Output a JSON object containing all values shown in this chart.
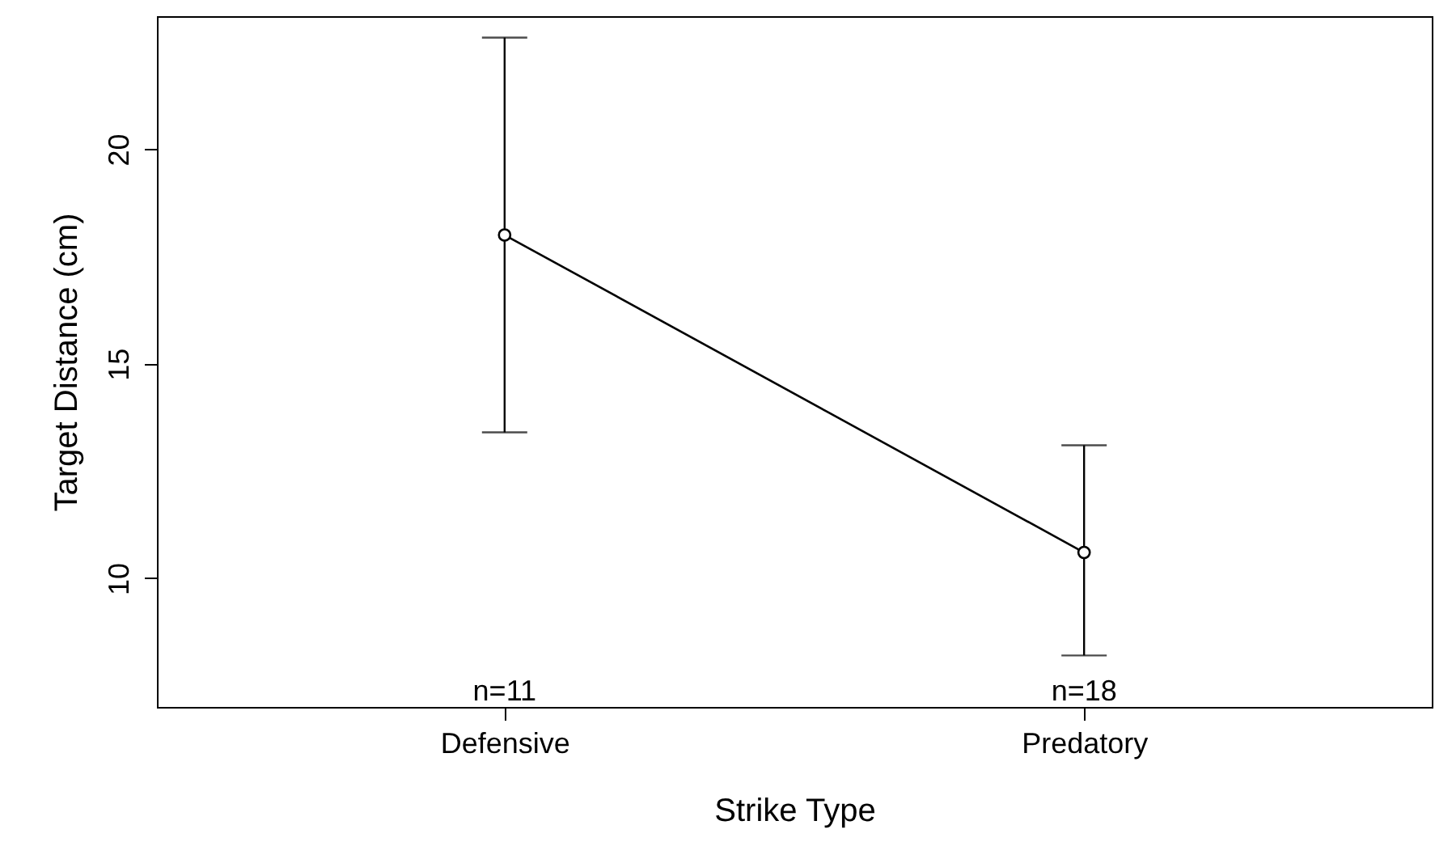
{
  "chart_data": {
    "type": "line",
    "xlabel": "Strike Type",
    "ylabel": "Target Distance (cm)",
    "categories": [
      "Defensive",
      "Predatory"
    ],
    "series": [
      {
        "color": "#000000",
        "values": [
          18.0,
          10.6
        ],
        "errors": [
          [
            13.4,
            22.6
          ],
          [
            8.2,
            13.1
          ]
        ]
      }
    ],
    "ylim": [
      7,
      23.1
    ],
    "yticks": [
      10,
      15,
      20
    ],
    "grid": false,
    "marker": "circle",
    "annotations": [
      "n=11",
      "n=18"
    ]
  }
}
